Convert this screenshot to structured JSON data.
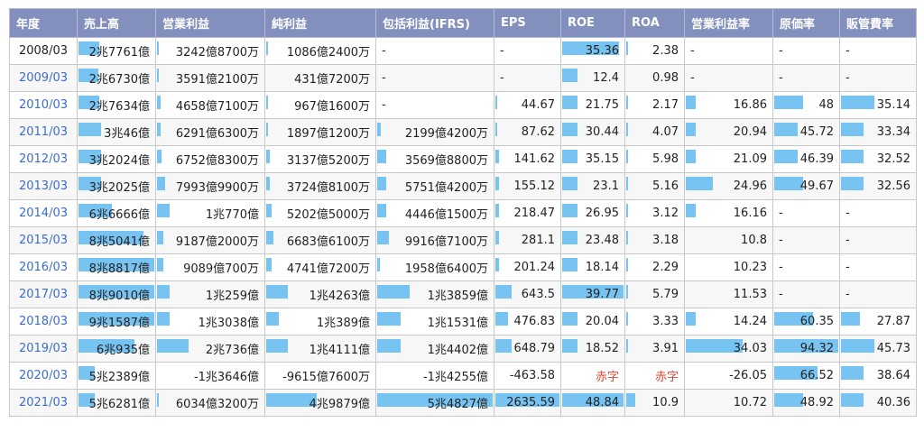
{
  "headers": [
    "年度",
    "売上高",
    "営業利益",
    "純利益",
    "包括利益(IFRS)",
    "EPS",
    "ROE",
    "ROA",
    "営業利益率",
    "原価率",
    "販管費率"
  ],
  "bar_color": "#77c3f2",
  "rows": [
    {
      "year": "2008/03",
      "cells": [
        {
          "t": "2兆7761億",
          "f": 0.27
        },
        {
          "t": "3242億8700万",
          "f": 0.02
        },
        {
          "t": "1086億2400万",
          "f": 0.02
        },
        {
          "t": "-",
          "f": 0
        },
        {
          "t": "-",
          "f": 0
        },
        {
          "t": "35.36",
          "f": 0.92
        },
        {
          "t": "2.38",
          "f": 0.02
        },
        {
          "t": "-",
          "f": 0
        },
        {
          "t": "-",
          "f": 0
        },
        {
          "t": "-",
          "f": 0
        }
      ]
    },
    {
      "year": "2009/03",
      "cells": [
        {
          "t": "2兆6730億",
          "f": 0.26
        },
        {
          "t": "3591億2100万",
          "f": 0.02
        },
        {
          "t": "431億7200万",
          "f": 0
        },
        {
          "t": "-",
          "f": 0
        },
        {
          "t": "-",
          "f": 0
        },
        {
          "t": "12.4",
          "f": 0.25
        },
        {
          "t": "0.98",
          "f": 0
        },
        {
          "t": "-",
          "f": 0
        },
        {
          "t": "-",
          "f": 0
        },
        {
          "t": "-",
          "f": 0
        }
      ]
    },
    {
      "year": "2010/03",
      "cells": [
        {
          "t": "2兆7634億",
          "f": 0.27
        },
        {
          "t": "4658億7100万",
          "f": 0.03
        },
        {
          "t": "967億1600万",
          "f": 0.02
        },
        {
          "t": "-",
          "f": 0
        },
        {
          "t": "44.67",
          "f": 0.03
        },
        {
          "t": "21.75",
          "f": 0.25
        },
        {
          "t": "2.17",
          "f": 0.02
        },
        {
          "t": "16.86",
          "f": 0.12
        },
        {
          "t": "48",
          "f": 0.45
        },
        {
          "t": "35.14",
          "f": 0.45
        }
      ]
    },
    {
      "year": "2011/03",
      "cells": [
        {
          "t": "3兆46億",
          "f": 0.3
        },
        {
          "t": "6291億6300万",
          "f": 0.03
        },
        {
          "t": "1897億1200万",
          "f": 0.02
        },
        {
          "t": "2199億4200万",
          "f": 0.03
        },
        {
          "t": "87.62",
          "f": 0.03
        },
        {
          "t": "30.44",
          "f": 0.25
        },
        {
          "t": "4.07",
          "f": 0.02
        },
        {
          "t": "20.94",
          "f": 0.12
        },
        {
          "t": "45.72",
          "f": 0.37
        },
        {
          "t": "33.34",
          "f": 0.3
        }
      ]
    },
    {
      "year": "2012/03",
      "cells": [
        {
          "t": "3兆2024億",
          "f": 0.3
        },
        {
          "t": "6752億8300万",
          "f": 0.04
        },
        {
          "t": "3137億5200万",
          "f": 0.03
        },
        {
          "t": "3569億8800万",
          "f": 0.08
        },
        {
          "t": "141.62",
          "f": 0.05
        },
        {
          "t": "35.15",
          "f": 0.25
        },
        {
          "t": "5.98",
          "f": 0.02
        },
        {
          "t": "21.09",
          "f": 0.12
        },
        {
          "t": "46.39",
          "f": 0.37
        },
        {
          "t": "32.52",
          "f": 0.3
        }
      ]
    },
    {
      "year": "2013/03",
      "cells": [
        {
          "t": "3兆2025億",
          "f": 0.3
        },
        {
          "t": "7993億9900万",
          "f": 0.08
        },
        {
          "t": "3724億8100万",
          "f": 0.03
        },
        {
          "t": "5751億4200万",
          "f": 0.08
        },
        {
          "t": "155.12",
          "f": 0.05
        },
        {
          "t": "23.1",
          "f": 0.25
        },
        {
          "t": "5.16",
          "f": 0.02
        },
        {
          "t": "24.96",
          "f": 0.32
        },
        {
          "t": "49.67",
          "f": 0.45
        },
        {
          "t": "32.56",
          "f": 0.3
        }
      ]
    },
    {
      "year": "2014/03",
      "cells": [
        {
          "t": "6兆6666億",
          "f": 0.44
        },
        {
          "t": "1兆770億",
          "f": 0.12
        },
        {
          "t": "5202億5000万",
          "f": 0.05
        },
        {
          "t": "4446億1500万",
          "f": 0.08
        },
        {
          "t": "218.47",
          "f": 0.05
        },
        {
          "t": "26.95",
          "f": 0.25
        },
        {
          "t": "3.12",
          "f": 0.02
        },
        {
          "t": "16.16",
          "f": 0.12
        },
        {
          "t": "-",
          "f": 0
        },
        {
          "t": "-",
          "f": 0
        }
      ]
    },
    {
      "year": "2015/03",
      "cells": [
        {
          "t": "8兆5041億",
          "f": 0.86
        },
        {
          "t": "9187億2000万",
          "f": 0.06
        },
        {
          "t": "6683億6100万",
          "f": 0.07
        },
        {
          "t": "9916億7100万",
          "f": 0.1
        },
        {
          "t": "281.1",
          "f": 0.05
        },
        {
          "t": "23.48",
          "f": 0.25
        },
        {
          "t": "3.18",
          "f": 0.02
        },
        {
          "t": "10.8",
          "f": 0
        },
        {
          "t": "-",
          "f": 0
        },
        {
          "t": "-",
          "f": 0
        }
      ]
    },
    {
      "year": "2016/03",
      "cells": [
        {
          "t": "8兆8817億",
          "f": 1.0
        },
        {
          "t": "9089億700万",
          "f": 0.06
        },
        {
          "t": "4741億7200万",
          "f": 0.05
        },
        {
          "t": "1958億6400万",
          "f": 0.02
        },
        {
          "t": "201.24",
          "f": 0.05
        },
        {
          "t": "18.14",
          "f": 0.25
        },
        {
          "t": "2.29",
          "f": 0.02
        },
        {
          "t": "10.23",
          "f": 0
        },
        {
          "t": "-",
          "f": 0
        },
        {
          "t": "-",
          "f": 0
        }
      ]
    },
    {
      "year": "2017/03",
      "cells": [
        {
          "t": "8兆9010億",
          "f": 1.0
        },
        {
          "t": "1兆259億",
          "f": 0.12
        },
        {
          "t": "1兆4263億",
          "f": 0.2
        },
        {
          "t": "1兆3859億",
          "f": 0.28
        },
        {
          "t": "643.5",
          "f": 0.25
        },
        {
          "t": "39.77",
          "f": 1.0
        },
        {
          "t": "5.79",
          "f": 0.02
        },
        {
          "t": "11.53",
          "f": 0
        },
        {
          "t": "-",
          "f": 0
        },
        {
          "t": "-",
          "f": 0
        }
      ]
    },
    {
      "year": "2018/03",
      "cells": [
        {
          "t": "9兆1587億",
          "f": 1.0
        },
        {
          "t": "1兆3038億",
          "f": 0.12
        },
        {
          "t": "1兆389億",
          "f": 0.12
        },
        {
          "t": "1兆1531億",
          "f": 0.2
        },
        {
          "t": "476.83",
          "f": 0.2
        },
        {
          "t": "20.04",
          "f": 0.25
        },
        {
          "t": "3.33",
          "f": 0.02
        },
        {
          "t": "14.24",
          "f": 0.12
        },
        {
          "t": "60.35",
          "f": 0.6
        },
        {
          "t": "27.87",
          "f": 0.25
        }
      ]
    },
    {
      "year": "2019/03",
      "cells": [
        {
          "t": "6兆935億",
          "f": 0.74
        },
        {
          "t": "2兆736億",
          "f": 0.3
        },
        {
          "t": "1兆4111億",
          "f": 0.2
        },
        {
          "t": "1兆4402億",
          "f": 0.2
        },
        {
          "t": "648.79",
          "f": 0.25
        },
        {
          "t": "18.52",
          "f": 0.25
        },
        {
          "t": "3.91",
          "f": 0.02
        },
        {
          "t": "34.03",
          "f": 0.66
        },
        {
          "t": "94.32",
          "f": 1.0
        },
        {
          "t": "45.73",
          "f": 0.45
        }
      ]
    },
    {
      "year": "2020/03",
      "cells": [
        {
          "t": "5兆2389億",
          "f": 0.21
        },
        {
          "t": "-1兆3646億",
          "f": 0
        },
        {
          "t": "-9615億7600万",
          "f": 0
        },
        {
          "t": "-1兆4255億",
          "f": 0
        },
        {
          "t": "-463.58",
          "f": 0
        },
        {
          "t": "赤字",
          "f": 0,
          "red": true
        },
        {
          "t": "赤字",
          "f": 0,
          "red": true
        },
        {
          "t": "-26.05",
          "f": 0
        },
        {
          "t": "66.52",
          "f": 0.67
        },
        {
          "t": "38.64",
          "f": 0.3
        }
      ]
    },
    {
      "year": "2021/03",
      "cells": [
        {
          "t": "5兆6281億",
          "f": 0.21
        },
        {
          "t": "6034億3200万",
          "f": 0.02
        },
        {
          "t": "4兆9879億",
          "f": 0.47
        },
        {
          "t": "5兆4827億",
          "f": 1.0
        },
        {
          "t": "2635.59",
          "f": 1.0
        },
        {
          "t": "48.84",
          "f": 1.0
        },
        {
          "t": "10.9",
          "f": 0.16
        },
        {
          "t": "10.72",
          "f": 0
        },
        {
          "t": "48.92",
          "f": 0.45
        },
        {
          "t": "40.36",
          "f": 0.3
        }
      ]
    }
  ]
}
